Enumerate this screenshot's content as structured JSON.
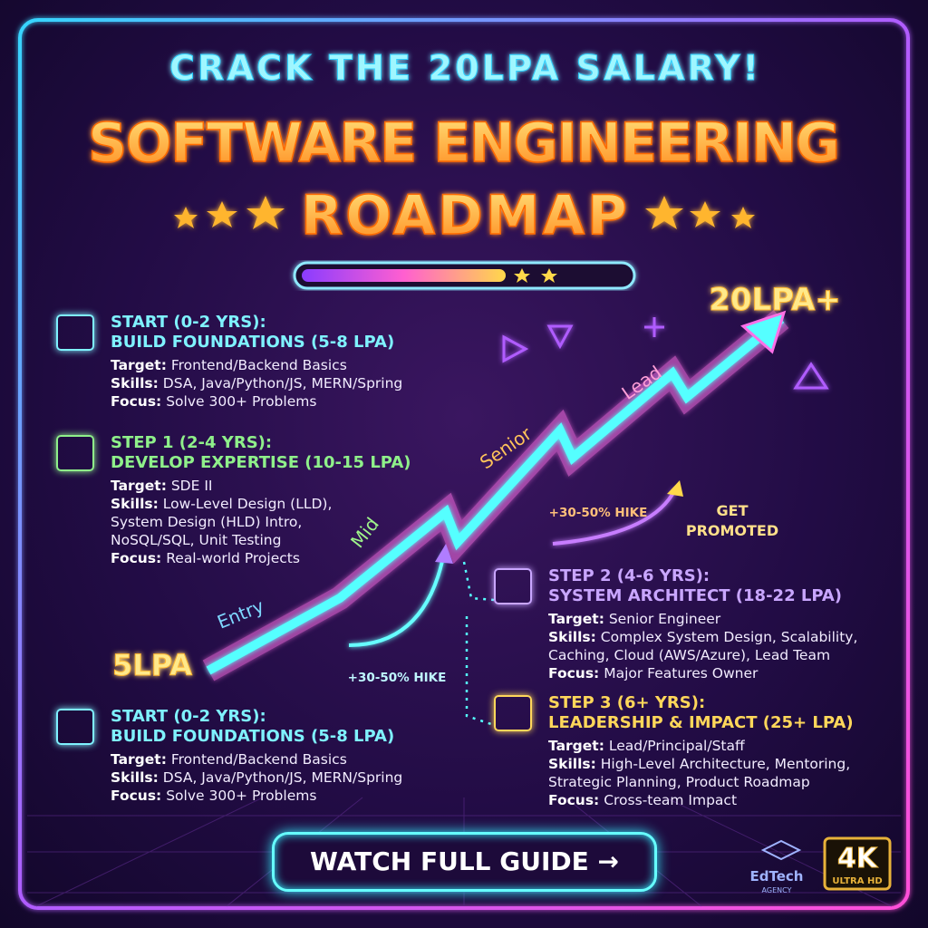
{
  "header": {
    "kicker": "CRACK THE 20LPA SALARY!",
    "title_lines": [
      "SOFTWARE ENGINEERING",
      "ROADMAP"
    ]
  },
  "graph": {
    "start_label": "5LPA",
    "end_label": "20LPA+",
    "levels": [
      "Entry",
      "Mid",
      "Senior",
      "Lead"
    ],
    "hike_labels": [
      "+30-50% HIKE",
      "+30-50% HIKE"
    ],
    "promotion_lines": [
      "GET",
      "PROMOTED"
    ]
  },
  "steps": [
    {
      "heading": "START (0-2 YRS):",
      "subheading": "BUILD FOUNDATIONS (5-8 LPA)",
      "details": [
        {
          "label": "Target:",
          "text": "Frontend/Backend Basics"
        },
        {
          "label": "Skills:",
          "text": "DSA, Java/Python/JS, MERN/Spring"
        },
        {
          "label": "Focus:",
          "text": "Solve 300+ Problems"
        }
      ]
    },
    {
      "heading": "STEP 1 (2-4 YRS):",
      "subheading": "DEVELOP EXPERTISE (10-15 LPA)",
      "details": [
        {
          "label": "Target:",
          "text": "SDE II"
        },
        {
          "label": "Skills:",
          "text": "Low-Level Design (LLD), System Design (HLD) Intro, NoSQL/SQL, Unit Testing"
        },
        {
          "label": "Focus:",
          "text": "Real-world Projects"
        }
      ]
    },
    {
      "heading": "STEP 2 (4-6 YRS):",
      "subheading": "SYSTEM ARCHITECT (18-22 LPA)",
      "details": [
        {
          "label": "Target:",
          "text": "Senior Engineer"
        },
        {
          "label": "Skills:",
          "text": "Complex System Design, Scalability, Caching, Cloud (AWS/Azure), Lead Team"
        },
        {
          "label": "Focus:",
          "text": "Major Features Owner"
        }
      ]
    },
    {
      "heading": "STEP 3 (6+ YRS):",
      "subheading": "LEADERSHIP & IMPACT (25+ LPA)",
      "details": [
        {
          "label": "Target:",
          "text": "Lead/Principal/Staff"
        },
        {
          "label": "Skills:",
          "text": "High-Level Architecture, Mentoring, Strategic Planning, Product Roadmap"
        },
        {
          "label": "Focus:",
          "text": "Cross-team Impact"
        }
      ]
    },
    {
      "heading": "START (0-2 YRS):",
      "subheading": "BUILD FOUNDATIONS (5-8 LPA)",
      "details": [
        {
          "label": "Target:",
          "text": "Frontend/Backend Basics"
        },
        {
          "label": "Skills:",
          "text": "DSA, Java/Python/JS, MERN/Spring"
        },
        {
          "label": "Focus:",
          "text": "Solve 300+ Problems"
        }
      ]
    }
  ],
  "button": {
    "label": "WATCH FULL GUIDE →"
  },
  "brand": {
    "name": "EdTech",
    "tagline": "AGENCY"
  },
  "badge": {
    "label": "4K",
    "sublabel": "ULTRA HD"
  }
}
